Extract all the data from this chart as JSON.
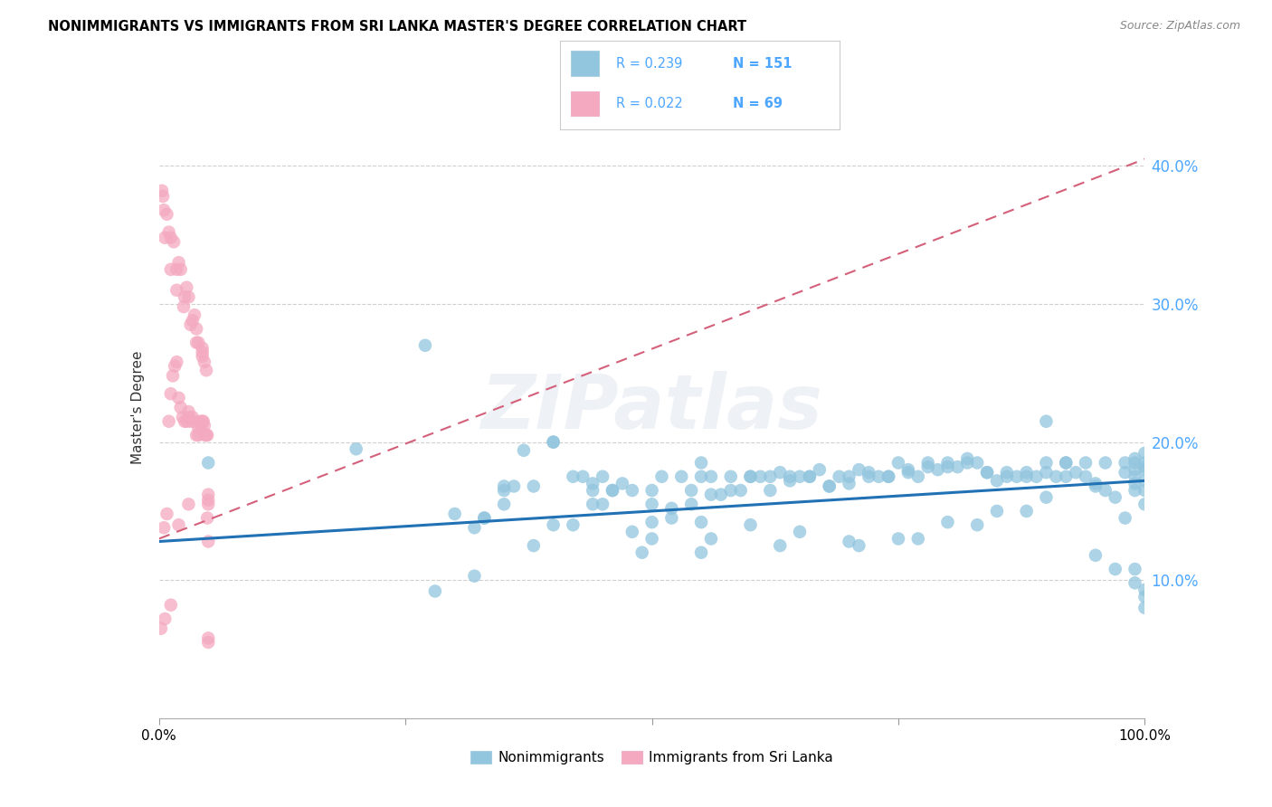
{
  "title": "NONIMMIGRANTS VS IMMIGRANTS FROM SRI LANKA MASTER'S DEGREE CORRELATION CHART",
  "source": "Source: ZipAtlas.com",
  "ylabel": "Master's Degree",
  "xlim": [
    0.0,
    1.0
  ],
  "ylim": [
    0.0,
    0.45
  ],
  "ytick_values": [
    0.1,
    0.2,
    0.3,
    0.4
  ],
  "ytick_labels": [
    "10.0%",
    "20.0%",
    "30.0%",
    "40.0%"
  ],
  "blue_scatter_color": "#92c5de",
  "pink_scatter_color": "#f4a9c0",
  "blue_line_color": "#2171b5",
  "pink_line_color": "#d4607a",
  "text_blue": "#4da6ff",
  "watermark": "ZIPatlas",
  "blue_trend_x0": 0.0,
  "blue_trend_y0": 0.128,
  "blue_trend_x1": 1.0,
  "blue_trend_y1": 0.172,
  "pink_trend_x0": 0.0,
  "pink_trend_y0": 0.13,
  "pink_trend_x1": 1.0,
  "pink_trend_y1": 0.405,
  "nonimmigrants_x": [
    0.2,
    0.05,
    0.27,
    0.32,
    0.33,
    0.35,
    0.37,
    0.38,
    0.4,
    0.4,
    0.42,
    0.43,
    0.44,
    0.45,
    0.46,
    0.47,
    0.48,
    0.5,
    0.5,
    0.51,
    0.52,
    0.53,
    0.54,
    0.55,
    0.55,
    0.56,
    0.57,
    0.58,
    0.59,
    0.6,
    0.61,
    0.62,
    0.63,
    0.64,
    0.65,
    0.66,
    0.67,
    0.68,
    0.69,
    0.7,
    0.71,
    0.72,
    0.73,
    0.74,
    0.75,
    0.76,
    0.77,
    0.78,
    0.79,
    0.8,
    0.81,
    0.82,
    0.83,
    0.84,
    0.85,
    0.86,
    0.87,
    0.88,
    0.89,
    0.9,
    0.9,
    0.91,
    0.92,
    0.93,
    0.94,
    0.95,
    0.96,
    0.97,
    0.98,
    0.99,
    0.99,
    0.99,
    0.99,
    0.99,
    1.0,
    1.0,
    1.0,
    1.0,
    0.33,
    0.36,
    0.38,
    0.44,
    0.46,
    0.49,
    0.52,
    0.54,
    0.56,
    0.58,
    0.6,
    0.62,
    0.64,
    0.66,
    0.68,
    0.7,
    0.72,
    0.74,
    0.76,
    0.78,
    0.8,
    0.82,
    0.84,
    0.86,
    0.88,
    0.9,
    0.92,
    0.94,
    0.96,
    0.98,
    0.3,
    0.35,
    0.45,
    0.5,
    0.55,
    0.6,
    0.65,
    0.7,
    0.75,
    0.8,
    0.85,
    0.9,
    0.95,
    0.98,
    0.99,
    1.0,
    1.0,
    1.0,
    0.35,
    0.42,
    0.48,
    0.56,
    0.63,
    0.71,
    0.77,
    0.83,
    0.88,
    0.92,
    0.95,
    0.97,
    0.99,
    0.99,
    1.0,
    1.0,
    1.0,
    0.44,
    0.5,
    0.55,
    0.4,
    0.32,
    0.28
  ],
  "nonimmigrants_y": [
    0.195,
    0.185,
    0.27,
    0.138,
    0.145,
    0.168,
    0.194,
    0.168,
    0.2,
    0.2,
    0.175,
    0.175,
    0.17,
    0.175,
    0.165,
    0.17,
    0.165,
    0.155,
    0.165,
    0.175,
    0.152,
    0.175,
    0.165,
    0.175,
    0.185,
    0.175,
    0.162,
    0.175,
    0.165,
    0.175,
    0.175,
    0.175,
    0.178,
    0.172,
    0.175,
    0.175,
    0.18,
    0.168,
    0.175,
    0.17,
    0.18,
    0.178,
    0.175,
    0.175,
    0.185,
    0.18,
    0.175,
    0.185,
    0.18,
    0.182,
    0.182,
    0.185,
    0.185,
    0.178,
    0.172,
    0.175,
    0.175,
    0.175,
    0.175,
    0.178,
    0.215,
    0.175,
    0.175,
    0.178,
    0.175,
    0.17,
    0.165,
    0.16,
    0.145,
    0.185,
    0.18,
    0.175,
    0.17,
    0.165,
    0.185,
    0.18,
    0.165,
    0.155,
    0.145,
    0.168,
    0.125,
    0.165,
    0.165,
    0.12,
    0.145,
    0.155,
    0.162,
    0.165,
    0.175,
    0.165,
    0.175,
    0.175,
    0.168,
    0.175,
    0.175,
    0.175,
    0.178,
    0.182,
    0.185,
    0.188,
    0.178,
    0.178,
    0.178,
    0.185,
    0.185,
    0.185,
    0.185,
    0.185,
    0.148,
    0.165,
    0.155,
    0.142,
    0.142,
    0.14,
    0.135,
    0.128,
    0.13,
    0.142,
    0.15,
    0.16,
    0.168,
    0.178,
    0.188,
    0.192,
    0.182,
    0.172,
    0.155,
    0.14,
    0.135,
    0.13,
    0.125,
    0.125,
    0.13,
    0.14,
    0.15,
    0.185,
    0.118,
    0.108,
    0.108,
    0.098,
    0.093,
    0.088,
    0.08,
    0.155,
    0.13,
    0.12,
    0.14,
    0.103,
    0.092
  ],
  "immigrants_x": [
    0.005,
    0.008,
    0.01,
    0.012,
    0.014,
    0.016,
    0.018,
    0.02,
    0.022,
    0.024,
    0.026,
    0.028,
    0.03,
    0.03,
    0.032,
    0.034,
    0.036,
    0.038,
    0.04,
    0.04,
    0.042,
    0.043,
    0.044,
    0.045,
    0.046,
    0.047,
    0.048,
    0.049,
    0.05,
    0.05,
    0.05,
    0.006,
    0.012,
    0.018,
    0.025,
    0.032,
    0.038,
    0.044,
    0.048,
    0.05,
    0.004,
    0.01,
    0.018,
    0.026,
    0.034,
    0.04,
    0.046,
    0.05,
    0.003,
    0.008,
    0.015,
    0.022,
    0.03,
    0.038,
    0.044,
    0.049,
    0.005,
    0.012,
    0.02,
    0.028,
    0.036,
    0.044,
    0.05,
    0.002,
    0.006,
    0.012,
    0.02,
    0.03
  ],
  "immigrants_y": [
    0.138,
    0.148,
    0.215,
    0.235,
    0.248,
    0.255,
    0.258,
    0.232,
    0.225,
    0.218,
    0.215,
    0.215,
    0.218,
    0.222,
    0.215,
    0.218,
    0.215,
    0.205,
    0.21,
    0.205,
    0.215,
    0.212,
    0.215,
    0.215,
    0.212,
    0.205,
    0.205,
    0.205,
    0.158,
    0.155,
    0.162,
    0.348,
    0.325,
    0.31,
    0.298,
    0.285,
    0.272,
    0.262,
    0.252,
    0.128,
    0.378,
    0.352,
    0.325,
    0.305,
    0.288,
    0.272,
    0.258,
    0.058,
    0.382,
    0.365,
    0.345,
    0.325,
    0.305,
    0.282,
    0.265,
    0.145,
    0.368,
    0.348,
    0.33,
    0.312,
    0.292,
    0.268,
    0.055,
    0.065,
    0.072,
    0.082,
    0.14,
    0.155
  ]
}
